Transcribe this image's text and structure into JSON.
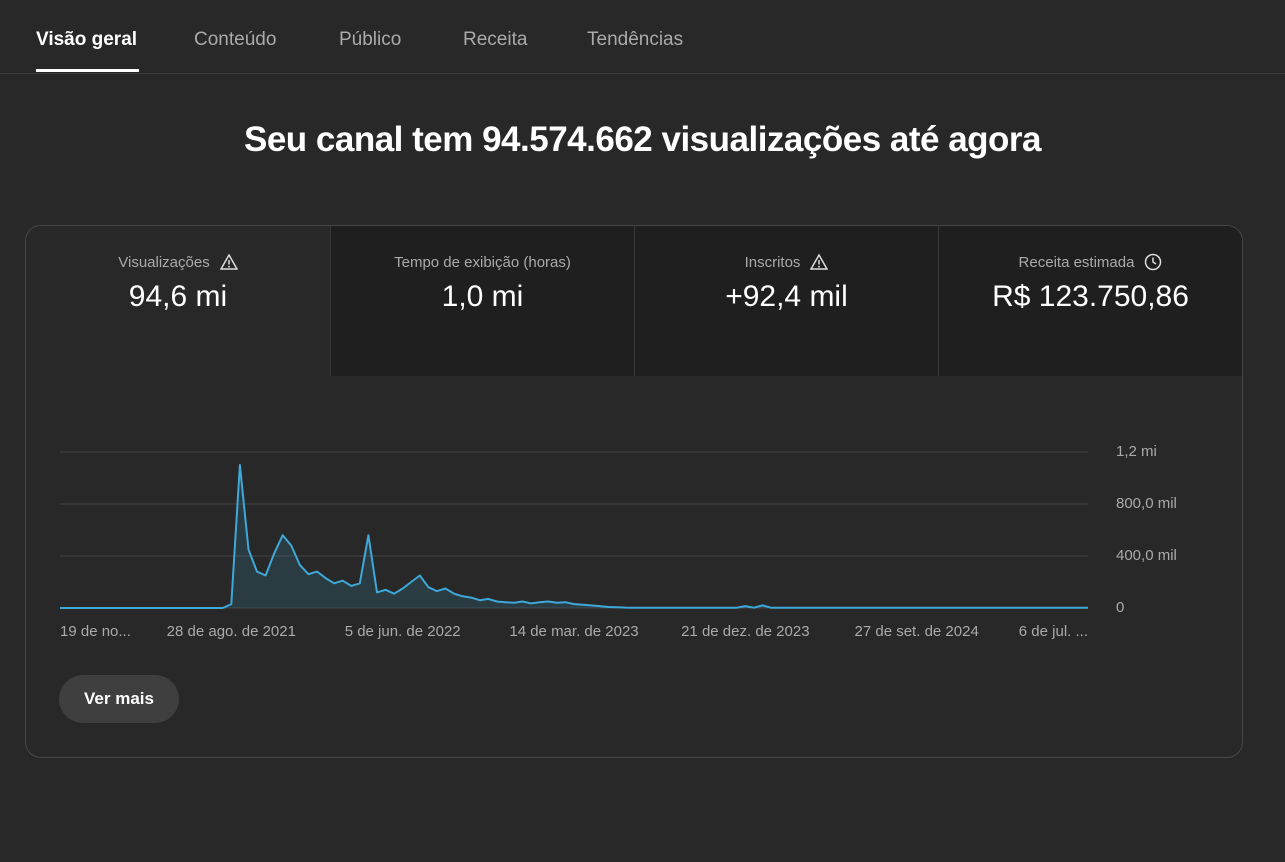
{
  "tabs": [
    "Visão geral",
    "Conteúdo",
    "Público",
    "Receita",
    "Tendências"
  ],
  "headline": "Seu canal tem 94.574.662 visualizações até agora",
  "metrics": [
    {
      "label": "Visualizações",
      "value": "94,6 mi"
    },
    {
      "label": "Tempo de exibição (horas)",
      "value": "1,0 mi"
    },
    {
      "label": "Inscritos",
      "value": "+92,4 mil"
    },
    {
      "label": "Receita estimada",
      "value": "R$ 123.750,86"
    }
  ],
  "button": "Ver mais",
  "chart_data": {
    "type": "line",
    "color": "#3ea8d8",
    "categories": [
      "19 de no...",
      null,
      null,
      null,
      null,
      null,
      null,
      null,
      null,
      null,
      null,
      null,
      null,
      null,
      null,
      null,
      null,
      null,
      null,
      null,
      "28 de ago. de 2021",
      null,
      null,
      null,
      null,
      null,
      null,
      null,
      null,
      null,
      null,
      null,
      null,
      null,
      null,
      null,
      null,
      null,
      null,
      null,
      "5 de jun. de 2022",
      null,
      null,
      null,
      null,
      null,
      null,
      null,
      null,
      null,
      null,
      null,
      null,
      null,
      null,
      null,
      null,
      null,
      null,
      null,
      "14 de mar. de 2023",
      null,
      null,
      null,
      null,
      null,
      null,
      null,
      null,
      null,
      null,
      null,
      null,
      null,
      null,
      null,
      null,
      null,
      null,
      null,
      "21 de dez. de 2023",
      null,
      null,
      null,
      null,
      null,
      null,
      null,
      null,
      null,
      null,
      null,
      null,
      null,
      null,
      null,
      null,
      null,
      null,
      null,
      "27 de set. de 2024",
      null,
      null,
      null,
      null,
      null,
      null,
      null,
      null,
      null,
      null,
      null,
      null,
      null,
      null,
      null,
      null,
      null,
      null,
      null,
      "6 de jul. ..."
    ],
    "values": [
      0,
      0,
      0,
      0,
      0,
      0,
      0,
      0,
      0,
      0,
      0,
      0,
      0,
      0,
      0,
      0,
      0,
      0,
      0,
      0,
      30000,
      1100000,
      450000,
      280000,
      250000,
      420000,
      560000,
      480000,
      330000,
      260000,
      280000,
      230000,
      190000,
      210000,
      170000,
      190000,
      560000,
      120000,
      140000,
      110000,
      150000,
      200000,
      250000,
      160000,
      130000,
      150000,
      110000,
      90000,
      80000,
      60000,
      70000,
      50000,
      45000,
      40000,
      50000,
      35000,
      45000,
      50000,
      40000,
      45000,
      30000,
      25000,
      20000,
      15000,
      8000,
      5000,
      3000,
      2000,
      2000,
      2000,
      2000,
      2000,
      2000,
      2000,
      2000,
      2000,
      2000,
      2000,
      2000,
      2000,
      15000,
      2000,
      20000,
      2000,
      2000,
      2000,
      2000,
      2000,
      2000,
      2000,
      2000,
      2000,
      2000,
      2000,
      2000,
      2000,
      2000,
      2000,
      2000,
      2000,
      2000,
      2000,
      2000,
      2000,
      2000,
      2000,
      2000,
      2000,
      2000,
      2000,
      2000,
      2000,
      2000,
      2000,
      2000,
      2000,
      2000,
      2000,
      2000,
      2000,
      2000
    ],
    "ylim": [
      0,
      1200000
    ],
    "yticks": [
      0,
      {
        "value": 400000,
        "label": "400,0 mil"
      },
      {
        "value": 800000,
        "label": "800,0 mil"
      },
      {
        "value": 1200000,
        "label": "1,2 mi"
      }
    ],
    "grid": true
  }
}
